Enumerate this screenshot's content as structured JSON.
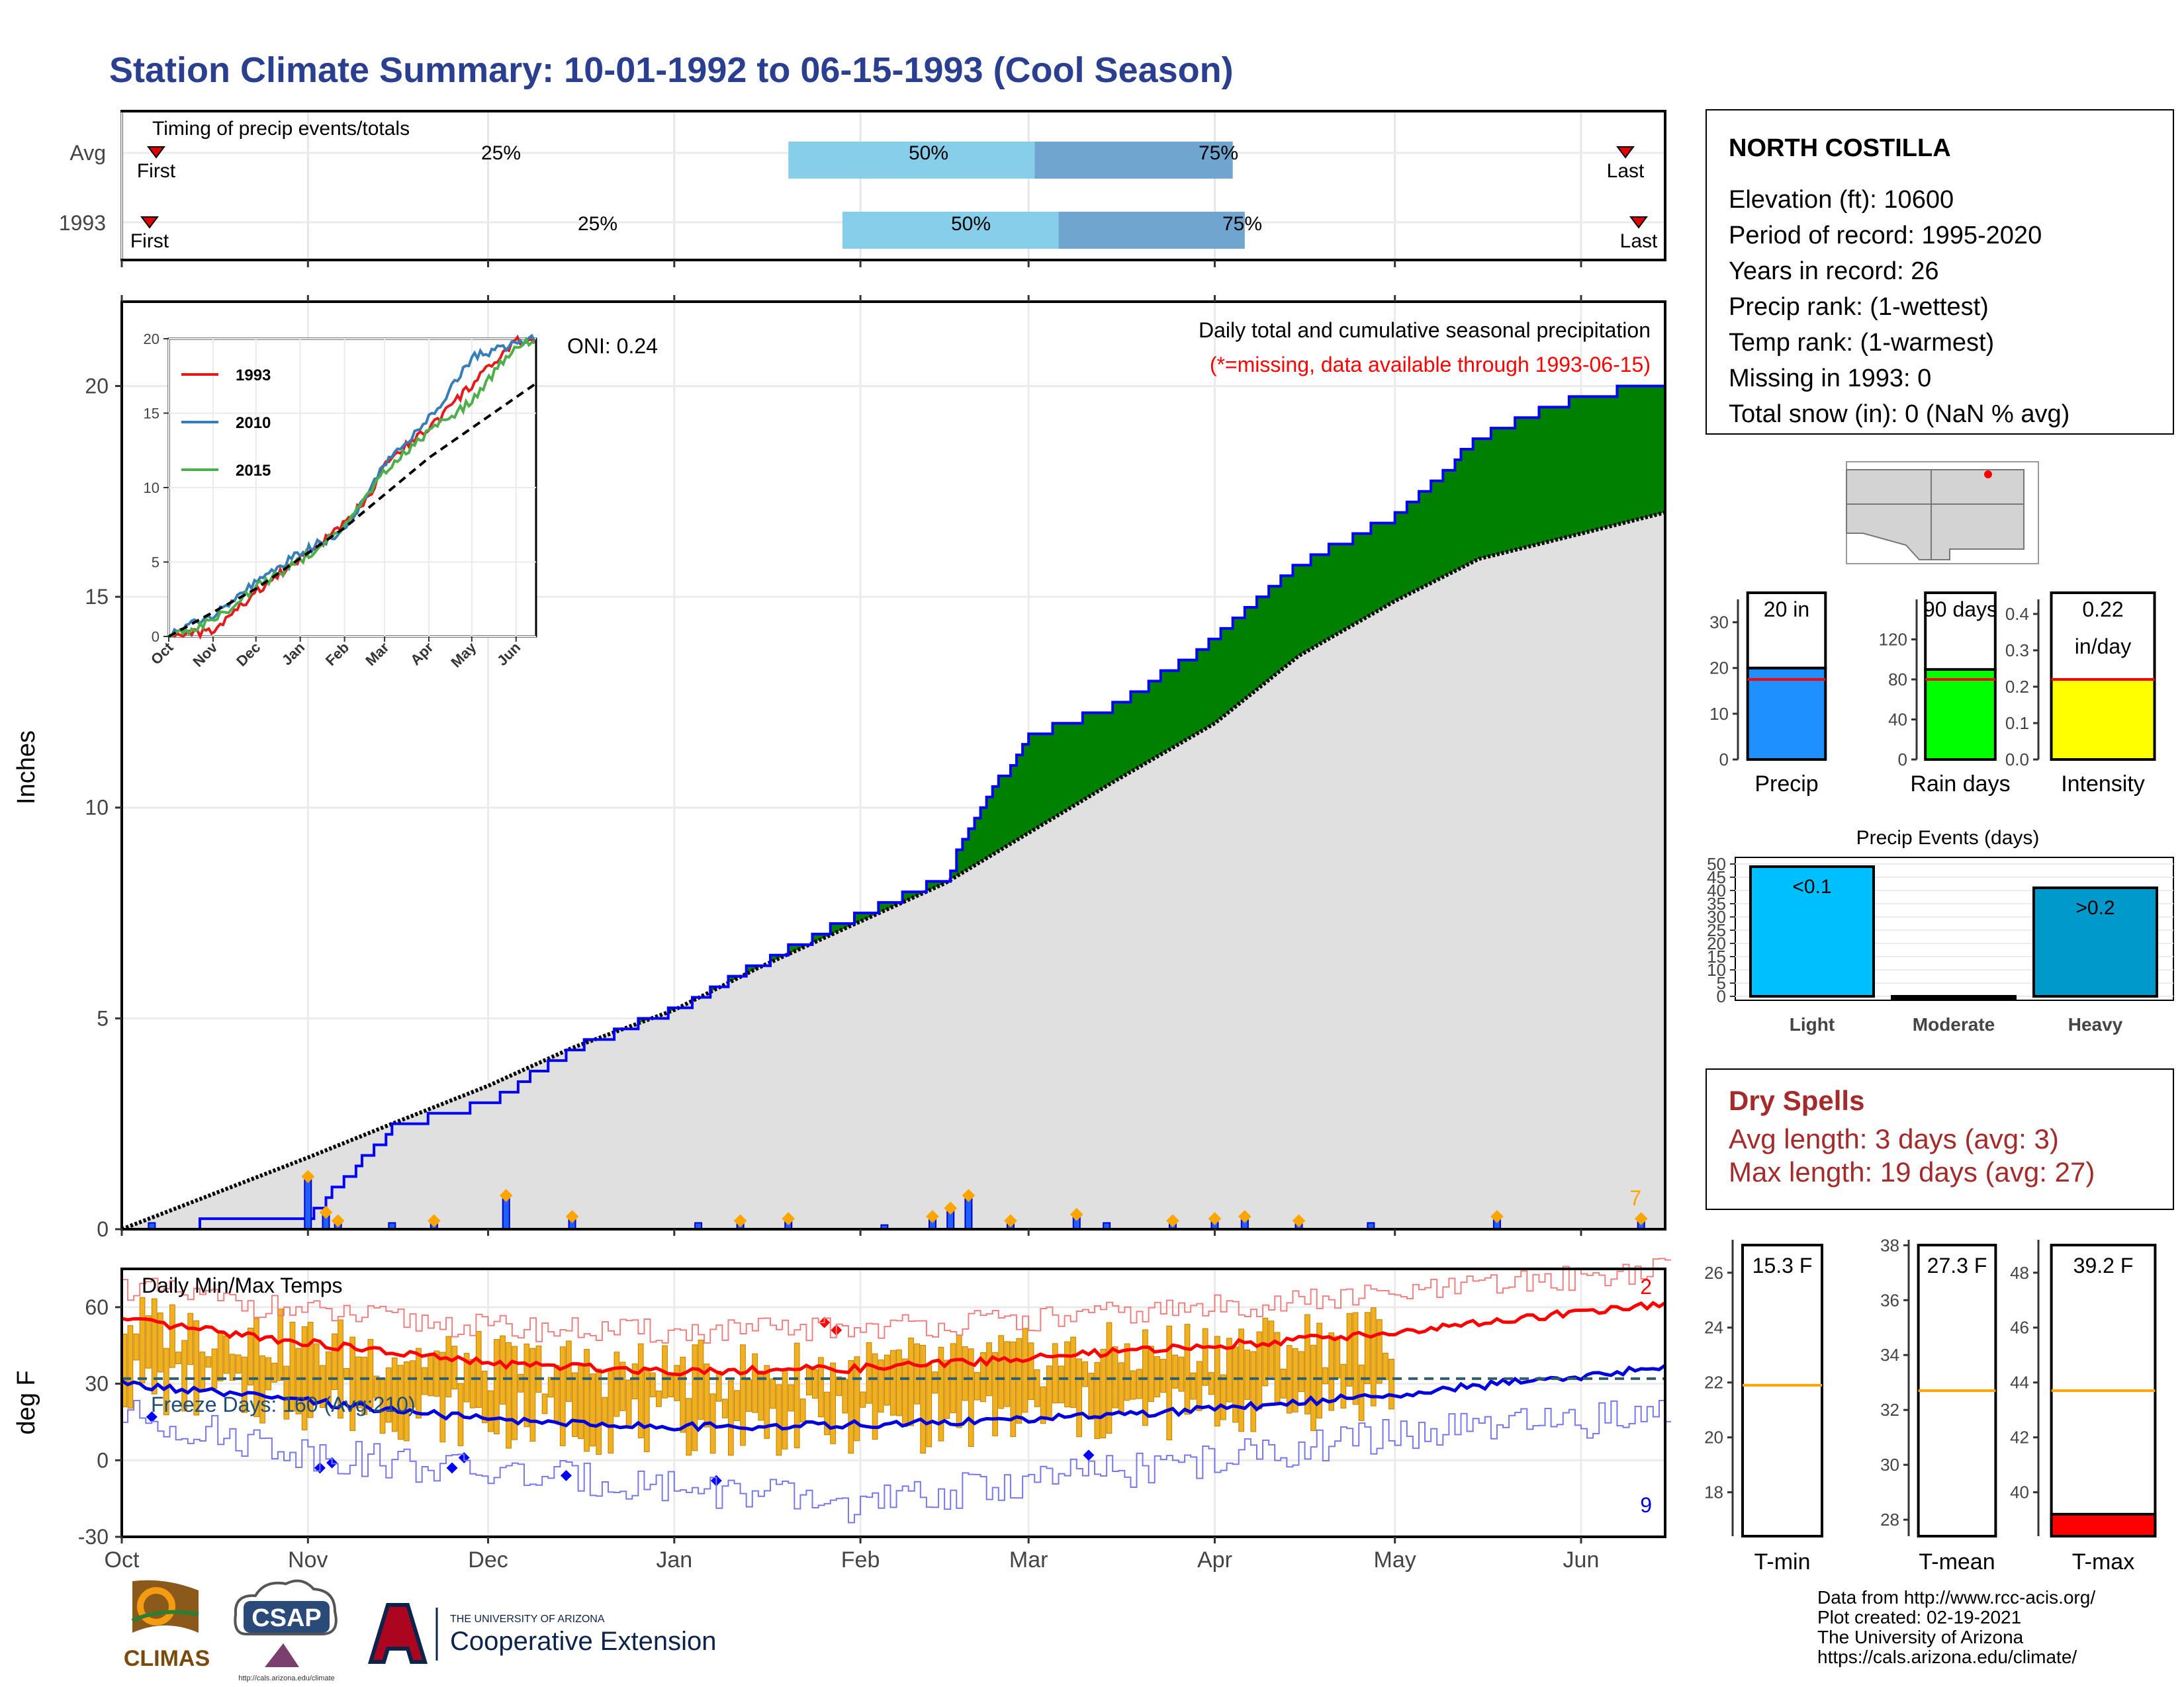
{
  "title": "Station Climate Summary: 10-01-1992 to 06-15-1993 (Cool Season)",
  "colors": {
    "title": "#2a3f8f",
    "light_blue": "#87ceeb",
    "mid_blue": "#6fa5cf",
    "green": "#008000",
    "brown": "#7a4a0a",
    "grey": "#e0e0e0",
    "blue": "#0000ff",
    "precip_bar": "#1e90ff",
    "rain_bar": "#00ff00",
    "intensity_bar": "#ffff00",
    "light_bar": "#00bfff",
    "heavy_bar": "#0099cc",
    "orange": "#ffa500",
    "dry_red": "#a52a2a",
    "tmax_red": "#ff0000"
  },
  "timing": {
    "title": "Timing of precip events/totals",
    "rows": [
      {
        "label": "Avg",
        "first_label": "First",
        "last_label": "Last",
        "p25_label": "25%",
        "p50_label": "50%",
        "p75_label": "75%",
        "first": "1992-10-04",
        "p25": "1993-01-20",
        "p50": "1993-03-02",
        "p75": "1993-04-04",
        "last": "1993-06-12"
      },
      {
        "label": "1993",
        "first_label": "First",
        "last_label": "Last",
        "p25_label": "25%",
        "p50_label": "50%",
        "p75_label": "75%",
        "first": "1992-10-02",
        "p25": "1993-01-29",
        "p50": "1993-03-06",
        "p75": "1993-04-06",
        "last": "1993-06-14"
      }
    ]
  },
  "months": [
    "Oct",
    "Nov",
    "Dec",
    "Jan",
    "Feb",
    "Mar",
    "Apr",
    "May",
    "Jun"
  ],
  "chart_data": [
    {
      "type": "area",
      "title": "Daily total and cumulative seasonal precipitation",
      "subtitle": "(*=missing, data available through 1993-06-15)",
      "ylabel": "Inches",
      "annotation_oni": "ONI: 0.24",
      "count_label": "7",
      "x_range": [
        "1992-10-01",
        "1993-06-15"
      ],
      "ylim": [
        0,
        22
      ],
      "y_ticks": [
        0,
        5,
        10,
        15,
        20
      ],
      "series": [
        {
          "name": "cumulative 1993",
          "x": [
            "1992-10-01",
            "1992-11-01",
            "1992-11-15",
            "1992-12-01",
            "1992-12-15",
            "1993-01-01",
            "1993-01-15",
            "1993-02-01",
            "1993-02-15",
            "1993-02-20",
            "1993-03-01",
            "1993-03-15",
            "1993-04-01",
            "1993-04-15",
            "1993-05-01",
            "1993-05-15",
            "1993-06-01",
            "1993-06-15"
          ],
          "values": [
            0.0,
            0.3,
            2.4,
            3.0,
            4.3,
            5.2,
            6.3,
            7.5,
            8.3,
            9.8,
            11.7,
            12.4,
            14.0,
            15.8,
            16.9,
            18.8,
            19.8,
            20.0
          ]
        },
        {
          "name": "average cumulative",
          "x": [
            "1992-10-01",
            "1992-11-01",
            "1992-11-15",
            "1992-12-01",
            "1992-12-15",
            "1993-01-01",
            "1993-01-15",
            "1993-02-01",
            "1993-02-15",
            "1993-03-01",
            "1993-03-15",
            "1993-04-01",
            "1993-04-15",
            "1993-05-01",
            "1993-05-15",
            "1993-06-01",
            "1993-06-15"
          ],
          "values": [
            0.0,
            1.7,
            2.5,
            3.4,
            4.3,
            5.2,
            6.2,
            7.3,
            8.2,
            9.4,
            10.6,
            12.0,
            13.6,
            14.9,
            15.9,
            16.5,
            17.0
          ]
        }
      ],
      "daily_precip": {
        "x": [
          "1992-10-06",
          "1992-11-01",
          "1992-11-04",
          "1992-11-06",
          "1992-11-15",
          "1992-11-22",
          "1992-12-04",
          "1992-12-15",
          "1993-01-05",
          "1993-01-12",
          "1993-01-20",
          "1993-02-05",
          "1993-02-13",
          "1993-02-16",
          "1993-02-19",
          "1993-02-26",
          "1993-03-09",
          "1993-03-14",
          "1993-03-25",
          "1993-04-01",
          "1993-04-06",
          "1993-04-15",
          "1993-04-27",
          "1993-05-18",
          "1993-06-11"
        ],
        "values": [
          0.15,
          1.25,
          0.4,
          0.2,
          0.15,
          0.2,
          0.8,
          0.3,
          0.15,
          0.2,
          0.25,
          0.1,
          0.3,
          0.5,
          0.8,
          0.2,
          0.35,
          0.15,
          0.2,
          0.25,
          0.3,
          0.2,
          0.15,
          0.3,
          0.25
        ]
      }
    },
    {
      "type": "line",
      "title": "",
      "legend": [
        "1993",
        "2010",
        "2015"
      ],
      "x_ticks": [
        "Oct",
        "Nov",
        "Dec",
        "Jan",
        "Feb",
        "Mar",
        "Apr",
        "May",
        "Jun"
      ],
      "y_ticks": [
        0,
        5,
        10,
        15,
        20
      ],
      "ylim": [
        0,
        20
      ],
      "series": [
        {
          "name": "1993",
          "color": "#e41a1c",
          "x": [
            "1992-10-01",
            "1992-11-01",
            "1992-12-01",
            "1993-01-01",
            "1993-02-01",
            "1993-02-20",
            "1993-03-01",
            "1993-04-01",
            "1993-05-01",
            "1993-06-01",
            "1993-06-15"
          ],
          "values": [
            0,
            0.3,
            3.0,
            5.2,
            7.5,
            9.8,
            11.7,
            14.0,
            16.9,
            19.8,
            20.0
          ]
        },
        {
          "name": "2010",
          "color": "#377eb8",
          "x": [
            "1992-10-01",
            "1992-11-01",
            "1992-12-01",
            "1993-01-01",
            "1993-02-01",
            "1993-03-01",
            "1993-04-01",
            "1993-05-01",
            "1993-06-01",
            "1993-06-15"
          ],
          "values": [
            0,
            1.5,
            3.6,
            5.6,
            7.1,
            11.6,
            14.6,
            18.7,
            19.7,
            20.0
          ]
        },
        {
          "name": "2015",
          "color": "#4daf4a",
          "x": [
            "1992-10-01",
            "1992-11-01",
            "1992-12-01",
            "1993-01-01",
            "1993-02-01",
            "1993-03-01",
            "1993-04-01",
            "1993-05-01",
            "1993-06-01",
            "1993-06-15"
          ],
          "values": [
            0,
            1.0,
            3.3,
            5.1,
            7.3,
            11.0,
            13.8,
            15.8,
            19.6,
            20.0
          ]
        },
        {
          "name": "average",
          "color": "#000000",
          "x": [
            "1992-10-01",
            "1992-12-01",
            "1993-02-01",
            "1993-04-01",
            "1993-06-15"
          ],
          "values": [
            0,
            3.2,
            7.3,
            12.0,
            17.0
          ]
        }
      ]
    },
    {
      "type": "line",
      "title": "Daily Min/Max Temps",
      "ylabel": "deg F",
      "freeze_label": "Freeze Days: 160 (Avg:210)",
      "top_count": "2",
      "bottom_count": "9",
      "ylim": [
        -30,
        75
      ],
      "y_ticks": [
        -30,
        0,
        30,
        60
      ],
      "freeze_line": 32,
      "series": [
        {
          "name": "avg max",
          "x": [
            "1992-10-01",
            "1992-11-01",
            "1992-12-01",
            "1993-01-01",
            "1993-02-01",
            "1993-03-01",
            "1993-04-01",
            "1993-05-01",
            "1993-06-01",
            "1993-06-15"
          ],
          "values": [
            55,
            46,
            38,
            35,
            36,
            40,
            45,
            50,
            58,
            61
          ]
        },
        {
          "name": "avg min",
          "x": [
            "1992-10-01",
            "1992-11-01",
            "1992-12-01",
            "1993-01-01",
            "1993-02-01",
            "1993-03-01",
            "1993-04-01",
            "1993-05-01",
            "1993-06-01",
            "1993-06-15"
          ],
          "values": [
            30,
            23,
            16,
            13,
            14,
            16,
            20,
            26,
            33,
            37
          ]
        },
        {
          "name": "record max",
          "x": [
            "1992-10-01",
            "1992-11-01",
            "1992-12-01",
            "1993-01-01",
            "1993-02-01",
            "1993-03-01",
            "1993-04-01",
            "1993-05-01",
            "1993-06-01",
            "1993-06-15"
          ],
          "values": [
            68,
            58,
            52,
            50,
            52,
            55,
            60,
            65,
            72,
            75
          ]
        },
        {
          "name": "record min",
          "x": [
            "1992-10-01",
            "1992-11-01",
            "1992-12-01",
            "1993-01-01",
            "1993-02-01",
            "1993-03-01",
            "1993-04-01",
            "1993-05-01",
            "1993-06-01",
            "1993-06-15"
          ],
          "values": [
            18,
            3,
            -5,
            -10,
            -18,
            -8,
            0,
            10,
            15,
            20
          ]
        }
      ]
    },
    {
      "type": "bar",
      "title": "",
      "categories": [
        "Precip",
        "Rain days",
        "Intensity"
      ],
      "values": [
        20,
        90,
        0.22
      ],
      "value_labels": [
        "20 in",
        "90 days",
        "0.22\nin/day"
      ],
      "averages": [
        17.5,
        80,
        0.22
      ],
      "axes": [
        {
          "ylim": [
            0,
            35
          ],
          "ticks": [
            0,
            10,
            20,
            30
          ]
        },
        {
          "ylim": [
            0,
            160
          ],
          "ticks": [
            0,
            40,
            80,
            120
          ]
        },
        {
          "ylim": [
            0,
            0.44
          ],
          "ticks": [
            0.0,
            0.1,
            0.2,
            0.3,
            0.4
          ]
        }
      ]
    },
    {
      "type": "bar",
      "title": "Precip Events (days)",
      "categories": [
        "Light",
        "Moderate",
        "Heavy"
      ],
      "values": [
        49,
        0,
        41
      ],
      "value_labels": [
        "<0.1",
        "",
        ">0.2"
      ],
      "ylim": [
        0,
        50
      ],
      "y_ticks": [
        0,
        5,
        10,
        15,
        20,
        25,
        30,
        35,
        40,
        45,
        50
      ]
    },
    {
      "type": "bar",
      "title": "",
      "categories": [
        "T-min",
        "T-mean",
        "T-max"
      ],
      "values": [
        15.3,
        27.3,
        39.2
      ],
      "value_labels": [
        "15.3 F",
        "27.3 F",
        "39.2 F"
      ],
      "averages": [
        21.9,
        32.7,
        43.7
      ],
      "axes": [
        {
          "ylim": [
            16.4,
            27.2
          ],
          "ticks": [
            18,
            20,
            22,
            24,
            26
          ]
        },
        {
          "ylim": [
            27.4,
            38.2
          ],
          "ticks": [
            28,
            30,
            32,
            34,
            36,
            38
          ]
        },
        {
          "ylim": [
            38.4,
            49.2
          ],
          "ticks": [
            40,
            42,
            44,
            46,
            48
          ]
        }
      ]
    }
  ],
  "station": {
    "name": "NORTH COSTILLA",
    "lines": [
      "Elevation (ft): 10600",
      "Period of record: 1995-2020",
      "Years in record: 26",
      "Precip rank:  (1-wettest)",
      "Temp rank:  (1-warmest)",
      "Missing in 1993: 0",
      "Total snow (in): 0 (NaN % avg)"
    ]
  },
  "dry_spells": {
    "title": "Dry Spells",
    "avg": "Avg length: 3 days (avg: 3)",
    "max": "Max length: 19 days (avg: 27)"
  },
  "logos": {
    "climas": "CLIMAS",
    "csap": "CSAP",
    "csap_url": "http://cals.arizona.edu/climate",
    "ua_small": "THE UNIVERSITY OF ARIZONA",
    "ua_big": "Cooperative Extension"
  },
  "footer": [
    "Data from http://www.rcc-acis.org/",
    "Plot created: 02-19-2021",
    "The University of Arizona",
    "https://cals.arizona.edu/climate/"
  ]
}
